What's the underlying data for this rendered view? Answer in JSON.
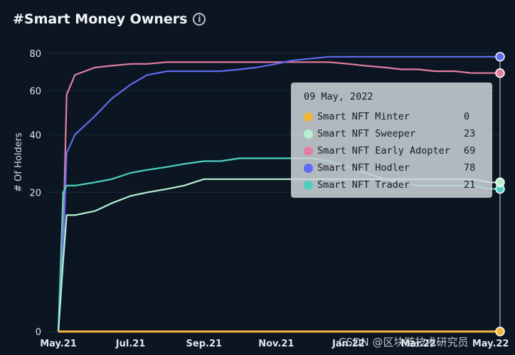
{
  "header": {
    "title": "#Smart Money Owners",
    "info_icon": "info-icon",
    "info_glyph": "i"
  },
  "watermark": "CSDN @区块链技术研究员",
  "tooltip": {
    "date": "09 May, 2022",
    "rows": [
      {
        "label": "Smart NFT Minter",
        "value": "0",
        "color": "#f3b63a"
      },
      {
        "label": "Smart NFT Sweeper",
        "value": "23",
        "color": "#b9f0d2"
      },
      {
        "label": "Smart NFT Early Adopter",
        "value": "69",
        "color": "#e47fa2"
      },
      {
        "label": "Smart NFT Hodler",
        "value": "78",
        "color": "#5f6cf0"
      },
      {
        "label": "Smart NFT Trader",
        "value": "21",
        "color": "#4ecfbf"
      }
    ]
  },
  "chart_data": {
    "type": "line",
    "title": "#Smart Money Owners",
    "xlabel": "",
    "ylabel": "# Of Holders",
    "y_scale": "sqrt-like",
    "y_ticks": [
      0,
      20,
      40,
      60,
      80
    ],
    "ylim": [
      0,
      82
    ],
    "x_ticks": [
      "May.21",
      "Jul.21",
      "Sep.21",
      "Nov.21",
      "Jan.22",
      "Mar.22",
      "May.22"
    ],
    "x": [
      "2021-05-01",
      "2021-05-05",
      "2021-05-08",
      "2021-05-15",
      "2021-06-01",
      "2021-06-15",
      "2021-07-01",
      "2021-07-15",
      "2021-08-01",
      "2021-08-15",
      "2021-09-01",
      "2021-09-15",
      "2021-10-01",
      "2021-10-15",
      "2021-11-01",
      "2021-11-15",
      "2021-12-01",
      "2021-12-15",
      "2022-01-01",
      "2022-01-15",
      "2022-02-01",
      "2022-02-15",
      "2022-03-01",
      "2022-03-15",
      "2022-04-01",
      "2022-04-15",
      "2022-05-01",
      "2022-05-09"
    ],
    "grid": true,
    "legend": "tooltip",
    "series": [
      {
        "name": "Smart NFT Minter",
        "color": "#f3b63a",
        "values": [
          0,
          0,
          0,
          0,
          0,
          0,
          0,
          0,
          0,
          0,
          0,
          0,
          0,
          0,
          0,
          0,
          0,
          0,
          0,
          0,
          0,
          0,
          0,
          0,
          0,
          0,
          0,
          0
        ]
      },
      {
        "name": "Smart NFT Sweeper",
        "color": "#b9f0d2",
        "values": [
          0,
          5,
          14,
          14,
          15,
          17,
          19,
          20,
          21,
          22,
          24,
          24,
          24,
          24,
          24,
          24,
          24,
          24,
          24,
          24,
          24,
          24,
          24,
          24,
          24,
          24,
          23,
          23
        ]
      },
      {
        "name": "Smart NFT Early Adopter",
        "color": "#e47fa2",
        "values": [
          0,
          8,
          58,
          68,
          72,
          73,
          74,
          74,
          75,
          75,
          75,
          75,
          75,
          75,
          75,
          75,
          75,
          75,
          74,
          73,
          72,
          71,
          71,
          70,
          70,
          69,
          69,
          69
        ]
      },
      {
        "name": "Smart NFT Hodler",
        "color": "#5f6cf0",
        "values": [
          0,
          6,
          33,
          40,
          48,
          56,
          63,
          68,
          70,
          70,
          70,
          70,
          71,
          72,
          74,
          76,
          77,
          78,
          78,
          78,
          78,
          78,
          78,
          78,
          78,
          78,
          78,
          78
        ]
      },
      {
        "name": "Smart NFT Trader",
        "color": "#4ecfbf",
        "values": [
          0,
          20,
          22,
          22,
          23,
          24,
          26,
          27,
          28,
          29,
          30,
          30,
          31,
          31,
          31,
          31,
          31,
          30,
          28,
          26,
          24,
          23,
          22,
          22,
          22,
          22,
          21,
          21
        ]
      }
    ]
  }
}
